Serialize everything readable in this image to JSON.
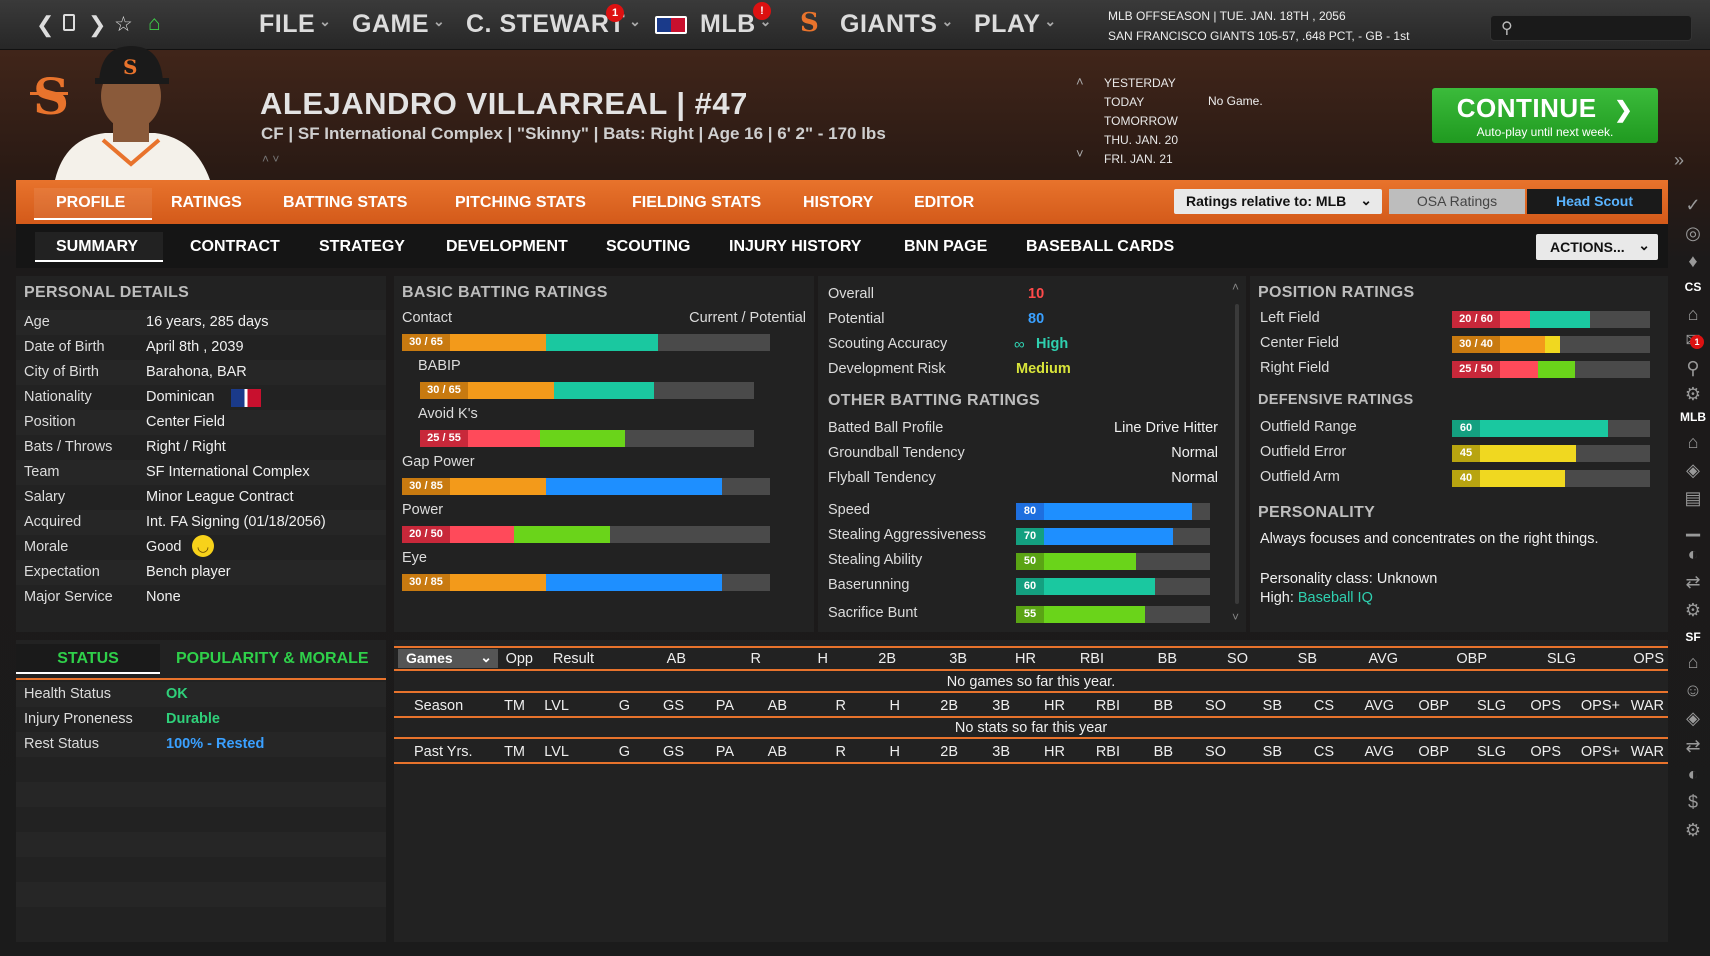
{
  "topbar": {
    "nav_icons": [
      "back-arrow-icon",
      "tablet-icon",
      "forward-arrow-icon",
      "star-icon",
      "home-icon"
    ],
    "menus": [
      {
        "label": "FILE"
      },
      {
        "label": "GAME"
      },
      {
        "label": "C. STEWART",
        "badge": "1"
      },
      {
        "label": "MLB",
        "badge": "!"
      },
      {
        "label": "GIANTS"
      },
      {
        "label": "PLAY"
      }
    ],
    "info_line1": "MLB OFFSEASON  |  TUE. JAN. 18TH , 2056",
    "info_line2": "SAN FRANCISCO GIANTS   105-57, .648 PCT, - GB - 1st",
    "search_placeholder": ""
  },
  "player": {
    "name": "ALEJANDRO VILLARREAL  |  #47",
    "info": "CF | SF International Complex  |  \"Skinny\" | Bats: Right  |  Age 16  |  6' 2\"  - 170 lbs"
  },
  "schedule": {
    "days": [
      "YESTERDAY",
      "TODAY",
      "TOMORROW",
      "THU. JAN. 20",
      "FRI. JAN. 21"
    ],
    "today_game": "No Game."
  },
  "continue": {
    "label": "CONTINUE",
    "sub": "Auto-play until next week."
  },
  "tabs1": [
    "PROFILE",
    "RATINGS",
    "BATTING STATS",
    "PITCHING STATS",
    "FIELDING STATS",
    "HISTORY",
    "EDITOR"
  ],
  "ratings_relative": "Ratings relative to: MLB",
  "osa_ratings": "OSA Ratings",
  "head_scout": "Head Scout",
  "tabs2": [
    "SUMMARY",
    "CONTRACT",
    "STRATEGY",
    "DEVELOPMENT",
    "SCOUTING",
    "INJURY HISTORY",
    "BNN PAGE",
    "BASEBALL CARDS"
  ],
  "actions": "ACTIONS...",
  "personal": {
    "title": "PERSONAL DETAILS",
    "rows": [
      {
        "label": "Age",
        "value": "16 years, 285 days"
      },
      {
        "label": "Date of Birth",
        "value": "April 8th , 2039"
      },
      {
        "label": "City of Birth",
        "value": "Barahona, BAR"
      },
      {
        "label": "Nationality",
        "value": "Dominican"
      },
      {
        "label": "Position",
        "value": "Center Field"
      },
      {
        "label": "Bats / Throws",
        "value": "Right / Right"
      },
      {
        "label": "Team",
        "value": "SF International Complex"
      },
      {
        "label": "Salary",
        "value": "Minor League Contract"
      },
      {
        "label": "Acquired",
        "value": "Int. FA Signing (01/18/2056)"
      },
      {
        "label": "Morale",
        "value": "Good"
      },
      {
        "label": "Expectation",
        "value": "Bench player"
      },
      {
        "label": "Major Service",
        "value": "None"
      }
    ]
  },
  "status": {
    "tab1": "STATUS",
    "tab2": "POPULARITY & MORALE",
    "rows": [
      {
        "label": "Health Status",
        "value": "OK",
        "color": "#2fd07a"
      },
      {
        "label": "Injury Proneness",
        "value": "Durable",
        "color": "#2fd07a"
      },
      {
        "label": "Rest Status",
        "value": "100% - Rested",
        "color": "#3aa0ff"
      }
    ]
  },
  "batting": {
    "title": "BASIC BATTING RATINGS",
    "col_header": "Current / Potential",
    "rows": [
      {
        "label": "Contact",
        "text": "30 / 65",
        "current": 30,
        "potential": 65,
        "indent": false
      },
      {
        "label": "BABIP",
        "text": "30 / 65",
        "current": 30,
        "potential": 65,
        "indent": true
      },
      {
        "label": "Avoid K's",
        "text": "25 / 55",
        "current": 25,
        "potential": 55,
        "indent": true
      },
      {
        "label": "Gap Power",
        "text": "30 / 85",
        "current": 30,
        "potential": 85,
        "indent": false
      },
      {
        "label": "Power",
        "text": "20 / 50",
        "current": 20,
        "potential": 50,
        "indent": false
      },
      {
        "label": "Eye",
        "text": "30 / 85",
        "current": 30,
        "potential": 85,
        "indent": false
      }
    ]
  },
  "overall": {
    "rows": [
      {
        "label": "Overall",
        "value": "10",
        "color": "#ff4a4a"
      },
      {
        "label": "Potential",
        "value": "80",
        "color": "#3aa0ff"
      },
      {
        "label": "Scouting Accuracy",
        "value": "High",
        "color": "#2fd0b0"
      },
      {
        "label": "Development Risk",
        "value": "Medium",
        "color": "#d8e43a"
      }
    ],
    "other_title": "OTHER BATTING RATINGS",
    "other": [
      {
        "label": "Batted Ball Profile",
        "value": "Line Drive Hitter"
      },
      {
        "label": "Groundball Tendency",
        "value": "Normal"
      },
      {
        "label": "Flyball Tendency",
        "value": "Normal"
      }
    ],
    "speed": [
      {
        "label": "Speed",
        "value": 80,
        "color": "#1e8fff"
      },
      {
        "label": "Stealing Aggressiveness",
        "value": 70,
        "color": "#1e8fff"
      },
      {
        "label": "Stealing Ability",
        "value": 50,
        "color": "#6ad41a"
      },
      {
        "label": "Baserunning",
        "value": 60,
        "color": "#1ac8a0"
      },
      {
        "label": "Sacrifice Bunt",
        "value": 55,
        "color": "#6ad41a"
      }
    ]
  },
  "positions": {
    "title": "POSITION RATINGS",
    "rows": [
      {
        "label": "Left Field",
        "text": "20 / 60",
        "current": 20,
        "potential": 60
      },
      {
        "label": "Center Field",
        "text": "30 / 40",
        "current": 30,
        "potential": 40
      },
      {
        "label": "Right Field",
        "text": "25 / 50",
        "current": 25,
        "potential": 50
      }
    ],
    "def_title": "DEFENSIVE RATINGS",
    "def": [
      {
        "label": "Outfield Range",
        "value": 60,
        "color": "#1ac8a0"
      },
      {
        "label": "Outfield Error",
        "value": 45,
        "color": "#f0d820"
      },
      {
        "label": "Outfield Arm",
        "value": 40,
        "color": "#f0d820"
      }
    ],
    "pers_title": "PERSONALITY",
    "pers_text": "Always focuses and concentrates on the right things.",
    "pers_class": "Personality class: Unknown",
    "pers_high_label": "High:",
    "pers_high_value": "Baseball IQ"
  },
  "games_table": {
    "select": "Games",
    "cols": [
      "Opp",
      "Result",
      "AB",
      "R",
      "H",
      "2B",
      "3B",
      "HR",
      "RBI",
      "BB",
      "SO",
      "SB",
      "AVG",
      "OBP",
      "SLG",
      "OPS"
    ],
    "empty": "No games so far this year."
  },
  "season_table": {
    "cols": [
      "Season",
      "TM",
      "LVL",
      "G",
      "GS",
      "PA",
      "AB",
      "R",
      "H",
      "2B",
      "3B",
      "HR",
      "RBI",
      "BB",
      "SO",
      "SB",
      "CS",
      "AVG",
      "OBP",
      "SLG",
      "OPS",
      "OPS+",
      "WAR"
    ],
    "empty": "No stats so far this year"
  },
  "past_table": {
    "cols": [
      "Past Yrs.",
      "TM",
      "LVL",
      "G",
      "GS",
      "PA",
      "AB",
      "R",
      "H",
      "2B",
      "3B",
      "HR",
      "RBI",
      "BB",
      "SO",
      "SB",
      "CS",
      "AVG",
      "OBP",
      "SLG",
      "OPS",
      "OPS+",
      "WAR"
    ]
  },
  "sidebar": {
    "labels": [
      "CS",
      "MLB",
      "SF"
    ]
  }
}
